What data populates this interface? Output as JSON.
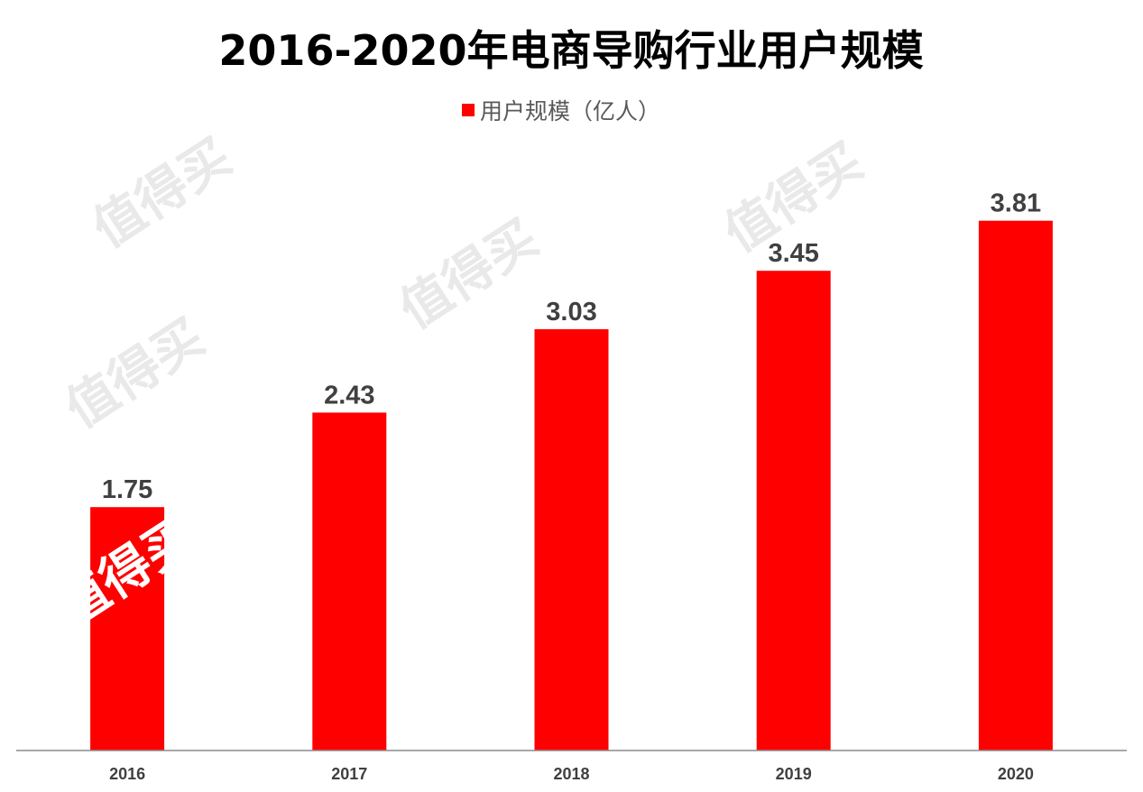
{
  "chart_data": {
    "type": "bar",
    "title": "2016-2020年电商导购行业用户规模",
    "categories": [
      "2016",
      "2017",
      "2018",
      "2019",
      "2020"
    ],
    "series": [
      {
        "name": "用户规模（亿人）",
        "values": [
          1.75,
          2.43,
          3.03,
          3.45,
          3.81
        ]
      }
    ],
    "data_labels": [
      "1.75",
      "2.43",
      "3.03",
      "3.45",
      "3.81"
    ],
    "xlabel": "",
    "ylabel": "",
    "ylim": [
      0,
      4.1
    ],
    "grid": false,
    "legend_position": "top-center",
    "y_axis_visible": false,
    "colors": {
      "bar": "#ff0000",
      "title": "#000000",
      "labels": "#404040",
      "legend_text": "#595959",
      "axis_line": "#8c8c8c",
      "watermark": "#e9e9e9"
    }
  },
  "watermark": {
    "text": "值得买"
  }
}
